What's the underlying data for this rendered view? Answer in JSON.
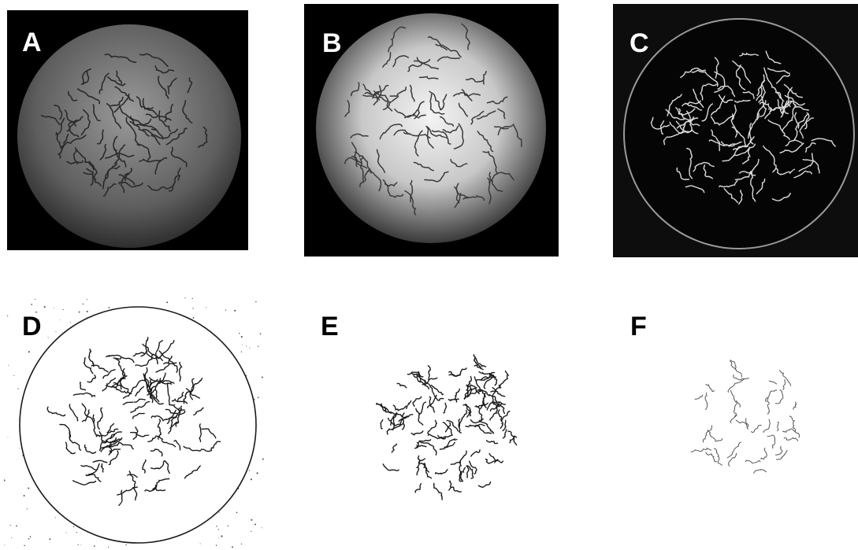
{
  "figure": {
    "panels": [
      {
        "id": "a",
        "label": "A"
      },
      {
        "id": "b",
        "label": "B"
      },
      {
        "id": "c",
        "label": "C"
      },
      {
        "id": "d",
        "label": "D"
      },
      {
        "id": "e",
        "label": "E"
      },
      {
        "id": "f",
        "label": "F"
      }
    ]
  },
  "colors": {
    "background": "#ffffff",
    "dark_panel": "#000000",
    "label_on_dark": "#ffffff",
    "label_on_light": "#000000",
    "worm_dark": "#2a2a2a",
    "worm_light": "#e0e0e0",
    "outline": "#1a1a1a"
  }
}
